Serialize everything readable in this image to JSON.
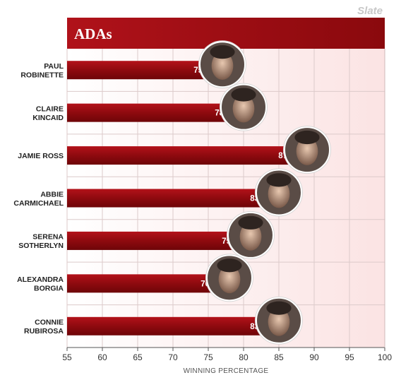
{
  "brand": "Slate",
  "chart_data": {
    "type": "bar",
    "orientation": "horizontal",
    "title": "ADAs",
    "xlabel": "WINNING PERCENTAGE",
    "ylabel": "",
    "xlim": [
      55,
      100
    ],
    "xticks": [
      55,
      60,
      65,
      70,
      75,
      80,
      85,
      90,
      95,
      100
    ],
    "grid": true,
    "categories": [
      [
        "PAUL",
        "ROBINETTE"
      ],
      [
        "CLAIRE",
        "KINCAID"
      ],
      [
        "JAMIE ROSS"
      ],
      [
        "ABBIE",
        "CARMICHAEL"
      ],
      [
        "SERENA",
        "SOTHERLYN"
      ],
      [
        "ALEXANDRA",
        "BORGIA"
      ],
      [
        "CONNIE",
        "RUBIROSA"
      ]
    ],
    "values": [
      75,
      78,
      87,
      83,
      79,
      76,
      83
    ],
    "colors": {
      "bar": "#8b0a0a",
      "bar_light": "#c0141a",
      "title_band": "#9e0b0f",
      "plot_bg": "#fdf0f0",
      "grid": "#d9c4c4"
    }
  }
}
